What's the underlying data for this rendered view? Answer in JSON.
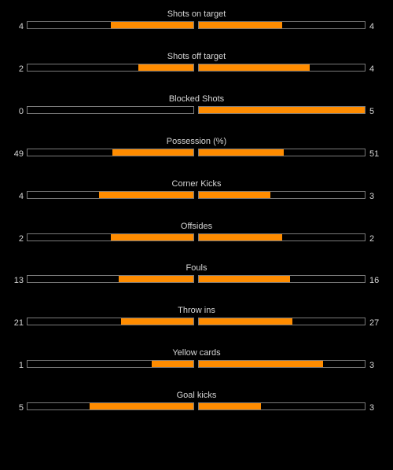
{
  "colors": {
    "background": "#000000",
    "fill": "#ff8c00",
    "bar_border": "#7a7a7a",
    "text": "#d6d6d6"
  },
  "stats": [
    {
      "label": "Shots on target",
      "home": "4",
      "away": "4",
      "home_fill": 0.5,
      "away_fill": 0.5
    },
    {
      "label": "Shots off target",
      "home": "2",
      "away": "4",
      "home_fill": 0.333,
      "away_fill": 0.667
    },
    {
      "label": "Blocked Shots",
      "home": "0",
      "away": "5",
      "home_fill": 0.0,
      "away_fill": 1.0
    },
    {
      "label": "Possession (%)",
      "home": "49",
      "away": "51",
      "home_fill": 0.49,
      "away_fill": 0.51
    },
    {
      "label": "Corner Kicks",
      "home": "4",
      "away": "3",
      "home_fill": 0.571,
      "away_fill": 0.429
    },
    {
      "label": "Offsides",
      "home": "2",
      "away": "2",
      "home_fill": 0.5,
      "away_fill": 0.5
    },
    {
      "label": "Fouls",
      "home": "13",
      "away": "16",
      "home_fill": 0.448,
      "away_fill": 0.552
    },
    {
      "label": "Throw ins",
      "home": "21",
      "away": "27",
      "home_fill": 0.4375,
      "away_fill": 0.5625
    },
    {
      "label": "Yellow cards",
      "home": "1",
      "away": "3",
      "home_fill": 0.25,
      "away_fill": 0.75
    },
    {
      "label": "Goal kicks",
      "home": "5",
      "away": "3",
      "home_fill": 0.625,
      "away_fill": 0.375
    }
  ]
}
